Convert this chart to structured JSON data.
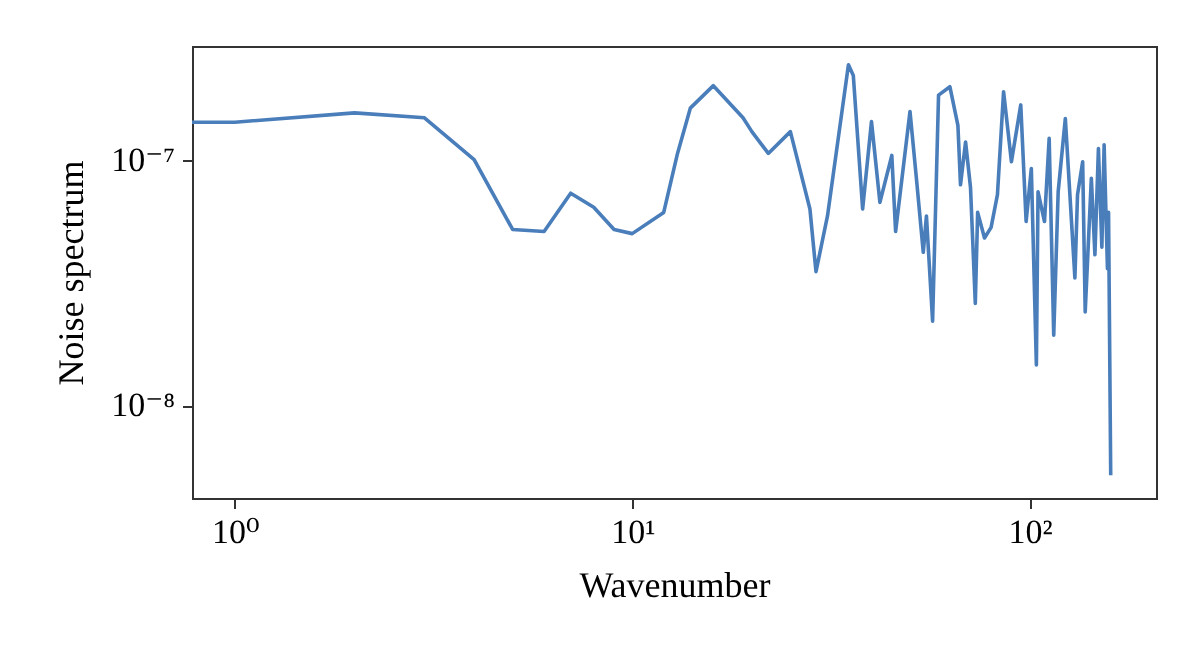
{
  "chart_data": {
    "type": "line",
    "xlabel": "Wavenumber",
    "ylabel": "Noise spectrum",
    "log": "xy",
    "xlim": [
      0.78,
      208
    ],
    "xticks": [
      {
        "value": 1,
        "label": "10⁰"
      },
      {
        "value": 10,
        "label": "10¹"
      },
      {
        "value": 100,
        "label": "10²"
      }
    ],
    "ylim": [
      4.2e-09,
      2.9e-07
    ],
    "yticks": [
      {
        "value": 1e-08,
        "label": "10⁻⁸"
      },
      {
        "value": 1e-07,
        "label": "10⁻⁷"
      }
    ],
    "series": [
      {
        "color": "#4a7ebb",
        "x": [
          0.78,
          1,
          2,
          3,
          4,
          5,
          6,
          7,
          8,
          9,
          10,
          12,
          13,
          14,
          16,
          19,
          20,
          22,
          25,
          28,
          29,
          31,
          35,
          36,
          38,
          40,
          42,
          45,
          46,
          50,
          52,
          54,
          55,
          57,
          59,
          63,
          66,
          67,
          69,
          71,
          73,
          74,
          77,
          80,
          83,
          86,
          90,
          95,
          98,
          101,
          104,
          105,
          109,
          112,
          115,
          118,
          123,
          130,
          132,
          136,
          138,
          143,
          146,
          149,
          152,
          154,
          157,
          158,
          160
        ],
        "values": [
          1.42e-07,
          1.42e-07,
          1.55e-07,
          1.48e-07,
          1e-07,
          5.2e-08,
          5.1e-08,
          7.3e-08,
          6.4e-08,
          5.2e-08,
          5e-08,
          6.1e-08,
          1.06e-07,
          1.62e-07,
          2e-07,
          1.48e-07,
          1.3e-07,
          1.06e-07,
          1.3e-07,
          6.3e-08,
          3.5e-08,
          5.9e-08,
          2.43e-07,
          2.2e-07,
          6.3e-08,
          1.43e-07,
          6.7e-08,
          1.04e-07,
          5.1e-08,
          1.57e-07,
          8.1e-08,
          4.2e-08,
          5.9e-08,
          2.2e-08,
          1.83e-07,
          1.98e-07,
          1.38e-07,
          7.9e-08,
          1.18e-07,
          7.7e-08,
          2.6e-08,
          6.1e-08,
          4.8e-08,
          5.3e-08,
          7.2e-08,
          1.89e-07,
          9.8e-08,
          1.67e-07,
          5.6e-08,
          9.2e-08,
          1.46e-08,
          7.4e-08,
          5.6e-08,
          1.22e-07,
          1.93e-08,
          7.4e-08,
          1.47e-07,
          3.3e-08,
          7.2e-08,
          9.8e-08,
          2.4e-08,
          8.4e-08,
          4.1e-08,
          1.11e-07,
          4.4e-08,
          1.15e-07,
          3.6e-08,
          6.1e-08,
          5.2e-09
        ]
      }
    ]
  }
}
